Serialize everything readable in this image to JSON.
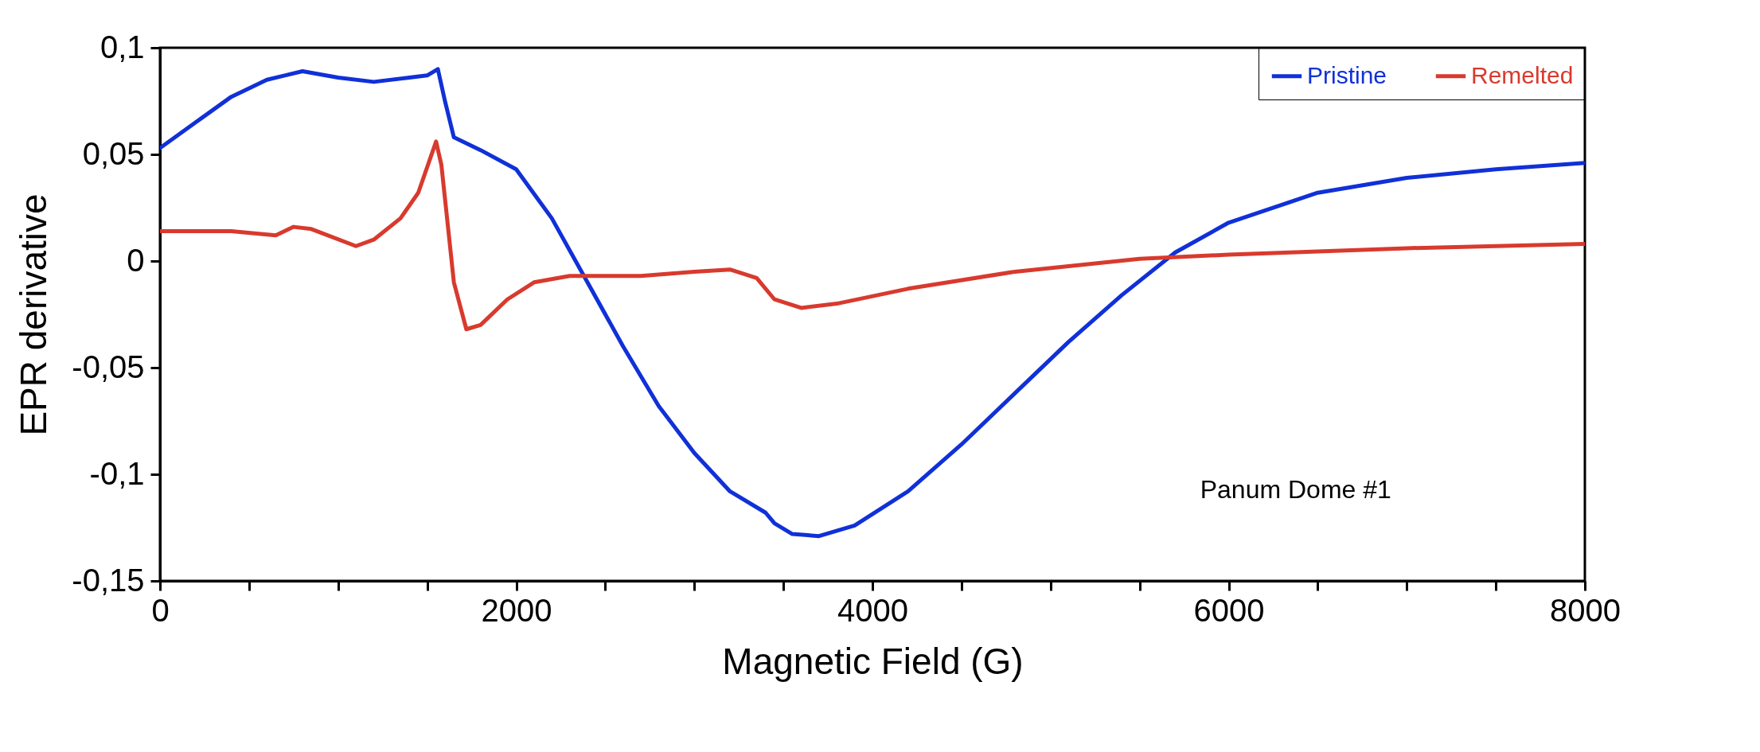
{
  "chart_data": {
    "type": "line",
    "xlabel": "Magnetic Field (G)",
    "ylabel": "EPR derivative",
    "xlim": [
      0,
      8000
    ],
    "ylim": [
      -0.15,
      0.1
    ],
    "xticks": [
      0,
      {
        "value": 500,
        "label": null
      },
      {
        "value": 1000,
        "label": null
      },
      {
        "value": 1500,
        "label": null
      },
      2000,
      {
        "value": 2500,
        "label": null
      },
      {
        "value": 3000,
        "label": null
      },
      {
        "value": 3500,
        "label": null
      },
      4000,
      {
        "value": 4500,
        "label": null
      },
      {
        "value": 5000,
        "label": null
      },
      {
        "value": 5500,
        "label": null
      },
      6000,
      {
        "value": 6500,
        "label": null
      },
      {
        "value": 7000,
        "label": null
      },
      {
        "value": 7500,
        "label": null
      },
      8000
    ],
    "yticks": [
      {
        "value": -0.15,
        "label": "-0,15"
      },
      {
        "value": -0.1,
        "label": "-0,1"
      },
      {
        "value": -0.05,
        "label": "-0,05"
      },
      0,
      {
        "value": 0.05,
        "label": "0,05"
      },
      {
        "value": 0.1,
        "label": "0,1"
      }
    ],
    "legend": "top right",
    "grid": false,
    "line_style": "solid",
    "annotations": [
      "Panum Dome #1"
    ],
    "series": [
      {
        "name": "Pristine",
        "color": "#1030d8",
        "x": [
          0,
          200,
          400,
          600,
          700,
          800,
          1000,
          1200,
          1400,
          1500,
          1560,
          1600,
          1650,
          1800,
          2000,
          2200,
          2400,
          2600,
          2800,
          3000,
          3200,
          3400,
          3450,
          3550,
          3700,
          3900,
          4200,
          4500,
          4800,
          5100,
          5400,
          5700,
          6000,
          6500,
          7000,
          7500,
          8000
        ],
        "values": [
          0.053,
          0.065,
          0.077,
          0.085,
          0.087,
          0.089,
          0.086,
          0.084,
          0.086,
          0.087,
          0.09,
          0.075,
          0.058,
          0.052,
          0.043,
          0.02,
          -0.01,
          -0.04,
          -0.068,
          -0.09,
          -0.108,
          -0.118,
          -0.123,
          -0.128,
          -0.129,
          -0.124,
          -0.108,
          -0.086,
          -0.062,
          -0.038,
          -0.016,
          0.004,
          0.018,
          0.032,
          0.039,
          0.043,
          0.046
        ]
      },
      {
        "name": "Remelted",
        "color": "#d83a2e",
        "x": [
          0,
          400,
          650,
          750,
          850,
          1100,
          1200,
          1350,
          1450,
          1550,
          1580,
          1650,
          1720,
          1800,
          1950,
          2100,
          2300,
          2700,
          3000,
          3200,
          3350,
          3450,
          3600,
          3800,
          4200,
          4800,
          5500,
          6000,
          7000,
          8000
        ],
        "values": [
          0.014,
          0.014,
          0.012,
          0.016,
          0.015,
          0.007,
          0.01,
          0.02,
          0.032,
          0.056,
          0.045,
          -0.01,
          -0.032,
          -0.03,
          -0.018,
          -0.01,
          -0.007,
          -0.007,
          -0.005,
          -0.004,
          -0.008,
          -0.018,
          -0.022,
          -0.02,
          -0.013,
          -0.005,
          0.001,
          0.003,
          0.006,
          0.008
        ]
      }
    ]
  }
}
